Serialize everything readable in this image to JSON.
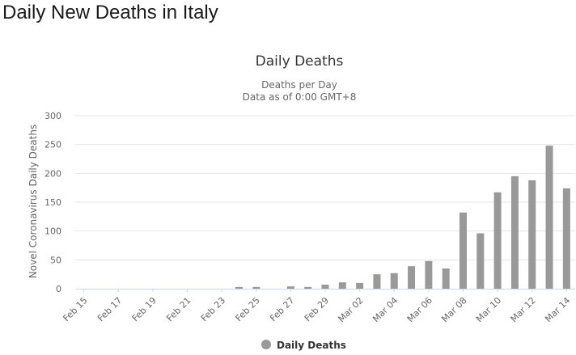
{
  "page": {
    "title": "Daily New Deaths in Italy"
  },
  "chart_data": {
    "type": "bar",
    "title": "Daily Deaths",
    "subtitle": "Deaths per Day",
    "subtitle2": "Data as of 0:00 GMT+8",
    "xlabel": "",
    "ylabel": "Novel Coronavirus Daily Deaths",
    "ylim": [
      0,
      300
    ],
    "yticks": [
      0,
      50,
      100,
      150,
      200,
      250,
      300
    ],
    "grid": true,
    "legend_position": "bottom-center",
    "categories": [
      "Feb 15",
      "Feb 16",
      "Feb 17",
      "Feb 18",
      "Feb 19",
      "Feb 20",
      "Feb 21",
      "Feb 22",
      "Feb 23",
      "Feb 24",
      "Feb 25",
      "Feb 26",
      "Feb 27",
      "Feb 28",
      "Feb 29",
      "Mar 01",
      "Mar 02",
      "Mar 03",
      "Mar 04",
      "Mar 05",
      "Mar 06",
      "Mar 07",
      "Mar 08",
      "Mar 09",
      "Mar 10",
      "Mar 11",
      "Mar 12",
      "Mar 13",
      "Mar 14"
    ],
    "tick_labels": [
      "Feb 15",
      "Feb 17",
      "Feb 19",
      "Feb 21",
      "Feb 23",
      "Feb 25",
      "Feb 27",
      "Feb 29",
      "Mar 02",
      "Mar 04",
      "Mar 06",
      "Mar 08",
      "Mar 10",
      "Mar 12",
      "Mar 14"
    ],
    "series": [
      {
        "name": "Daily Deaths",
        "color": "#999999",
        "values": [
          0,
          0,
          0,
          0,
          0,
          0,
          0,
          0,
          0,
          3,
          3,
          0,
          4,
          3,
          7,
          11,
          10,
          25,
          27,
          39,
          48,
          35,
          132,
          96,
          167,
          195,
          188,
          248,
          174
        ]
      }
    ]
  }
}
